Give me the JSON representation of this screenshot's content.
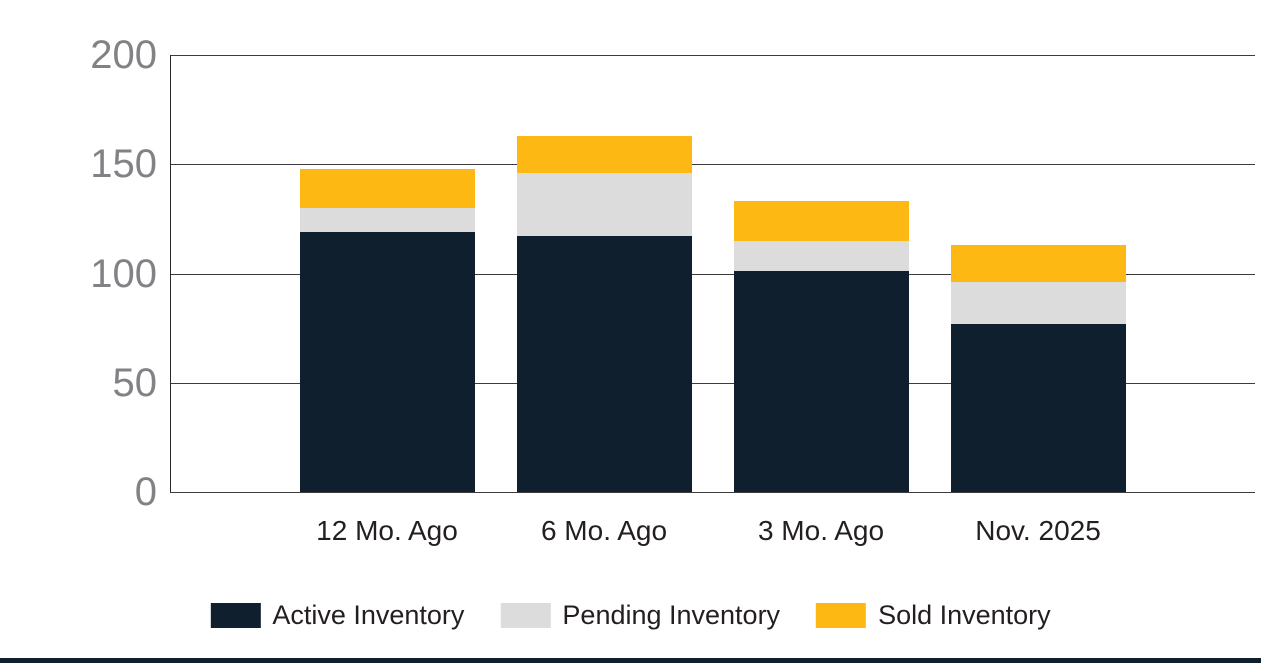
{
  "chart_data": {
    "type": "bar",
    "stacked": true,
    "title": "",
    "xlabel": "",
    "ylabel": "",
    "categories": [
      "12 Mo. Ago",
      "6 Mo. Ago",
      "3 Mo. Ago",
      "Nov. 2025"
    ],
    "series": [
      {
        "name": "Active Inventory",
        "color": "#101f2e",
        "values": [
          119,
          117,
          101,
          77
        ]
      },
      {
        "name": "Pending Inventory",
        "color": "#dcdcdc",
        "values": [
          11,
          29,
          14,
          19
        ]
      },
      {
        "name": "Sold Inventory",
        "color": "#fdb813",
        "values": [
          18,
          17,
          18,
          17
        ]
      }
    ],
    "totals": [
      148,
      163,
      133,
      113
    ],
    "ylim": [
      0,
      200
    ],
    "yticks": [
      0,
      50,
      100,
      150,
      200
    ],
    "grid": true,
    "legend_position": "bottom"
  },
  "style": {
    "background": "#ffffff",
    "axis_color": "#2b2b2b",
    "grid_color": "#3c3c3c",
    "tick_label_color": "#808285",
    "x_label_color": "#231f20",
    "legend_label_color": "#231f20",
    "footer_bar_color": "#101f2e"
  }
}
